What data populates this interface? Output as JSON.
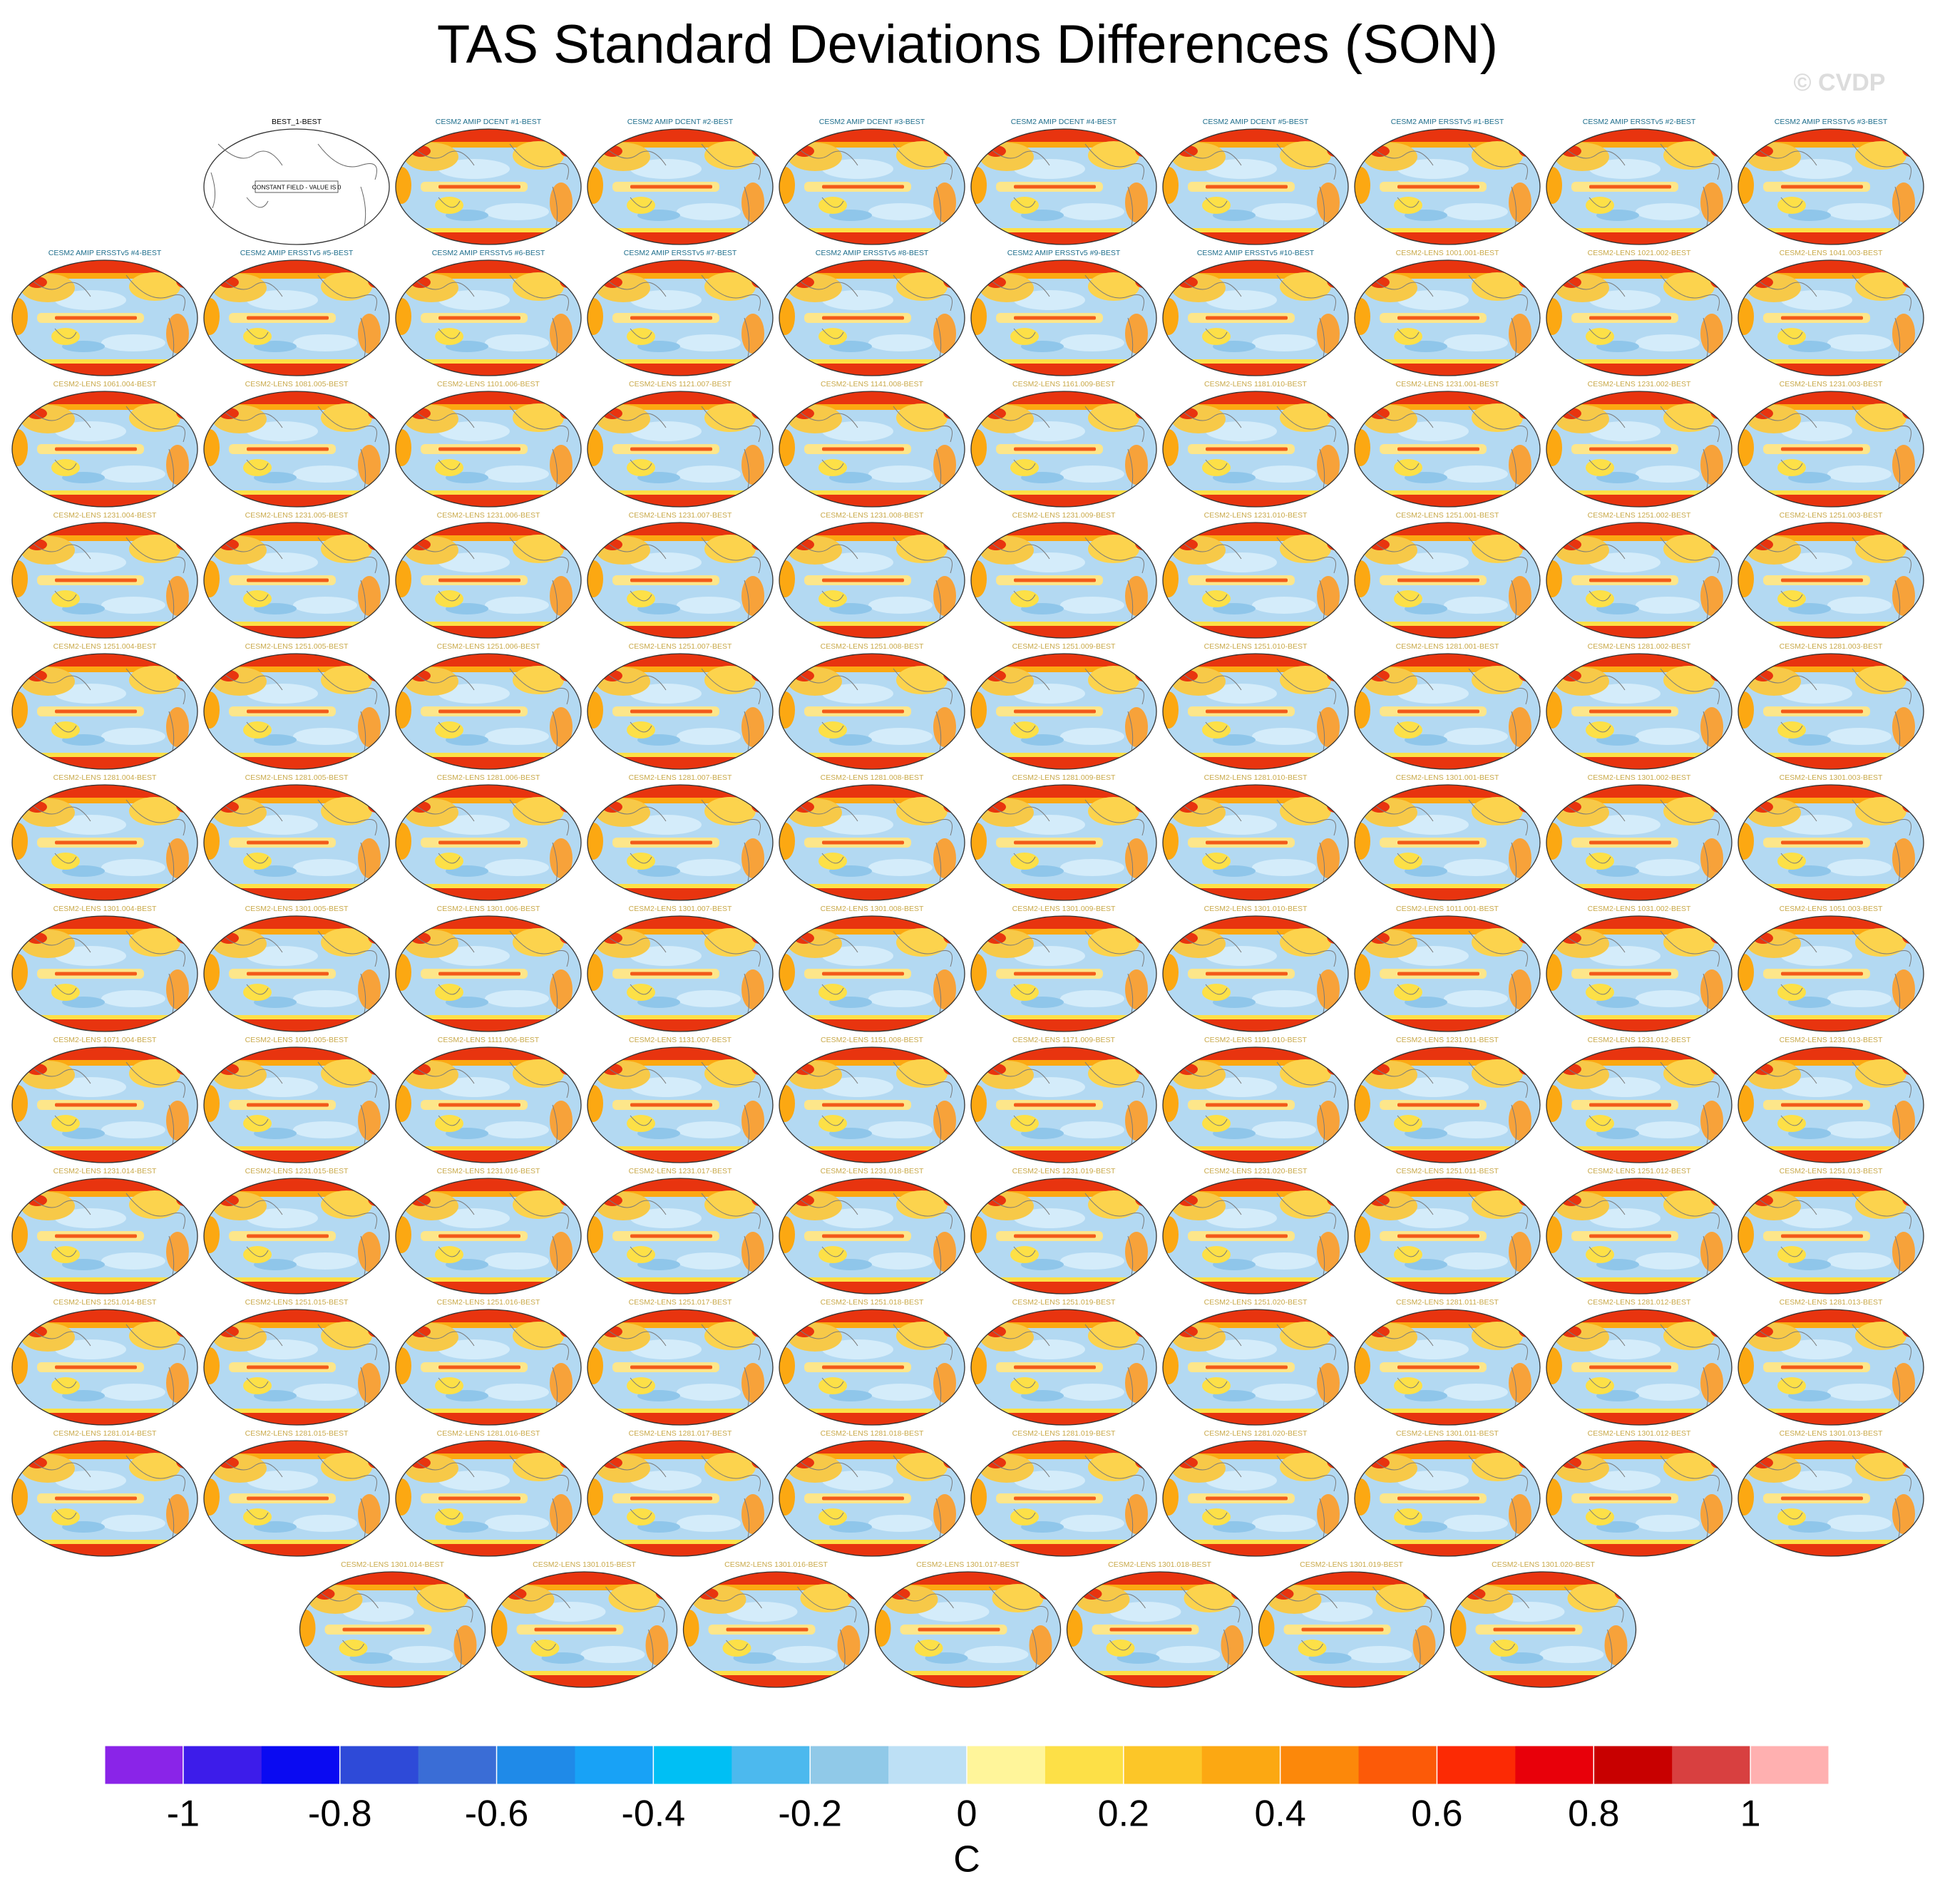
{
  "title": "TAS Standard Deviations Differences (SON)",
  "watermark": "© CVDP",
  "panel_groups": [
    {
      "color": "#000000",
      "note": "CONSTANT FIELD - VALUE IS 0",
      "labels": [
        "BEST_1-BEST"
      ]
    },
    {
      "color": "#1f6e8c",
      "labels": [
        "CESM2 AMIP DCENT #1-BEST",
        "CESM2 AMIP DCENT #2-BEST",
        "CESM2 AMIP DCENT #3-BEST",
        "CESM2 AMIP DCENT #4-BEST",
        "CESM2 AMIP DCENT #5-BEST",
        "CESM2 AMIP ERSSTv5 #1-BEST",
        "CESM2 AMIP ERSSTv5 #2-BEST",
        "CESM2 AMIP ERSSTv5 #3-BEST",
        "CESM2 AMIP ERSSTv5 #4-BEST",
        "CESM2 AMIP ERSSTv5 #5-BEST",
        "CESM2 AMIP ERSSTv5 #6-BEST",
        "CESM2 AMIP ERSSTv5 #7-BEST",
        "CESM2 AMIP ERSSTv5 #8-BEST",
        "CESM2 AMIP ERSSTv5 #9-BEST",
        "CESM2 AMIP ERSSTv5 #10-BEST"
      ]
    },
    {
      "color": "#c9a94a",
      "labels": [
        "CESM2-LENS 1001.001-BEST",
        "CESM2-LENS 1021.002-BEST",
        "CESM2-LENS 1041.003-BEST",
        "CESM2-LENS 1061.004-BEST",
        "CESM2-LENS 1081.005-BEST",
        "CESM2-LENS 1101.006-BEST",
        "CESM2-LENS 1121.007-BEST",
        "CESM2-LENS 1141.008-BEST",
        "CESM2-LENS 1161.009-BEST",
        "CESM2-LENS 1181.010-BEST",
        "CESM2-LENS 1231.001-BEST",
        "CESM2-LENS 1231.002-BEST",
        "CESM2-LENS 1231.003-BEST",
        "CESM2-LENS 1231.004-BEST",
        "CESM2-LENS 1231.005-BEST",
        "CESM2-LENS 1231.006-BEST",
        "CESM2-LENS 1231.007-BEST",
        "CESM2-LENS 1231.008-BEST",
        "CESM2-LENS 1231.009-BEST",
        "CESM2-LENS 1231.010-BEST",
        "CESM2-LENS 1251.001-BEST",
        "CESM2-LENS 1251.002-BEST",
        "CESM2-LENS 1251.003-BEST",
        "CESM2-LENS 1251.004-BEST",
        "CESM2-LENS 1251.005-BEST",
        "CESM2-LENS 1251.006-BEST",
        "CESM2-LENS 1251.007-BEST",
        "CESM2-LENS 1251.008-BEST",
        "CESM2-LENS 1251.009-BEST",
        "CESM2-LENS 1251.010-BEST",
        "CESM2-LENS 1281.001-BEST",
        "CESM2-LENS 1281.002-BEST",
        "CESM2-LENS 1281.003-BEST",
        "CESM2-LENS 1281.004-BEST",
        "CESM2-LENS 1281.005-BEST",
        "CESM2-LENS 1281.006-BEST",
        "CESM2-LENS 1281.007-BEST",
        "CESM2-LENS 1281.008-BEST",
        "CESM2-LENS 1281.009-BEST",
        "CESM2-LENS 1281.010-BEST",
        "CESM2-LENS 1301.001-BEST",
        "CESM2-LENS 1301.002-BEST",
        "CESM2-LENS 1301.003-BEST",
        "CESM2-LENS 1301.004-BEST",
        "CESM2-LENS 1301.005-BEST",
        "CESM2-LENS 1301.006-BEST",
        "CESM2-LENS 1301.007-BEST",
        "CESM2-LENS 1301.008-BEST",
        "CESM2-LENS 1301.009-BEST",
        "CESM2-LENS 1301.010-BEST",
        "CESM2-LENS 1011.001-BEST",
        "CESM2-LENS 1031.002-BEST",
        "CESM2-LENS 1051.003-BEST",
        "CESM2-LENS 1071.004-BEST",
        "CESM2-LENS 1091.005-BEST",
        "CESM2-LENS 1111.006-BEST",
        "CESM2-LENS 1131.007-BEST",
        "CESM2-LENS 1151.008-BEST",
        "CESM2-LENS 1171.009-BEST",
        "CESM2-LENS 1191.010-BEST",
        "CESM2-LENS 1231.011-BEST",
        "CESM2-LENS 1231.012-BEST",
        "CESM2-LENS 1231.013-BEST",
        "CESM2-LENS 1231.014-BEST",
        "CESM2-LENS 1231.015-BEST",
        "CESM2-LENS 1231.016-BEST",
        "CESM2-LENS 1231.017-BEST",
        "CESM2-LENS 1231.018-BEST",
        "CESM2-LENS 1231.019-BEST",
        "CESM2-LENS 1231.020-BEST",
        "CESM2-LENS 1251.011-BEST",
        "CESM2-LENS 1251.012-BEST",
        "CESM2-LENS 1251.013-BEST",
        "CESM2-LENS 1251.014-BEST",
        "CESM2-LENS 1251.015-BEST",
        "CESM2-LENS 1251.016-BEST",
        "CESM2-LENS 1251.017-BEST",
        "CESM2-LENS 1251.018-BEST",
        "CESM2-LENS 1251.019-BEST",
        "CESM2-LENS 1251.020-BEST",
        "CESM2-LENS 1281.011-BEST",
        "CESM2-LENS 1281.012-BEST",
        "CESM2-LENS 1281.013-BEST",
        "CESM2-LENS 1281.014-BEST",
        "CESM2-LENS 1281.015-BEST",
        "CESM2-LENS 1281.016-BEST",
        "CESM2-LENS 1281.017-BEST",
        "CESM2-LENS 1281.018-BEST",
        "CESM2-LENS 1281.019-BEST",
        "CESM2-LENS 1281.020-BEST",
        "CESM2-LENS 1301.011-BEST",
        "CESM2-LENS 1301.012-BEST",
        "CESM2-LENS 1301.013-BEST",
        "CESM2-LENS 1301.014-BEST",
        "CESM2-LENS 1301.015-BEST",
        "CESM2-LENS 1301.016-BEST",
        "CESM2-LENS 1301.017-BEST",
        "CESM2-LENS 1301.018-BEST",
        "CESM2-LENS 1301.019-BEST",
        "CESM2-LENS 1301.020-BEST"
      ]
    }
  ],
  "colorbar": {
    "colors": [
      "#8a24e8",
      "#3d1cea",
      "#0a0af2",
      "#2e4ad8",
      "#3a6dd6",
      "#1f8ae8",
      "#18a2f6",
      "#00bff4",
      "#4cb9ee",
      "#90c9e8",
      "#bde0f5",
      "#fff59a",
      "#fde047",
      "#fcc628",
      "#fca812",
      "#fc880a",
      "#fc5a08",
      "#fc2a04",
      "#e8000a",
      "#c80000",
      "#d84040",
      "#ffb0b0"
    ],
    "xlim": [
      -1.1,
      1.1
    ],
    "ticks": [
      -1,
      -0.8,
      -0.6,
      -0.4,
      -0.2,
      0,
      0.2,
      0.4,
      0.6,
      0.8,
      1
    ],
    "label": "C"
  }
}
